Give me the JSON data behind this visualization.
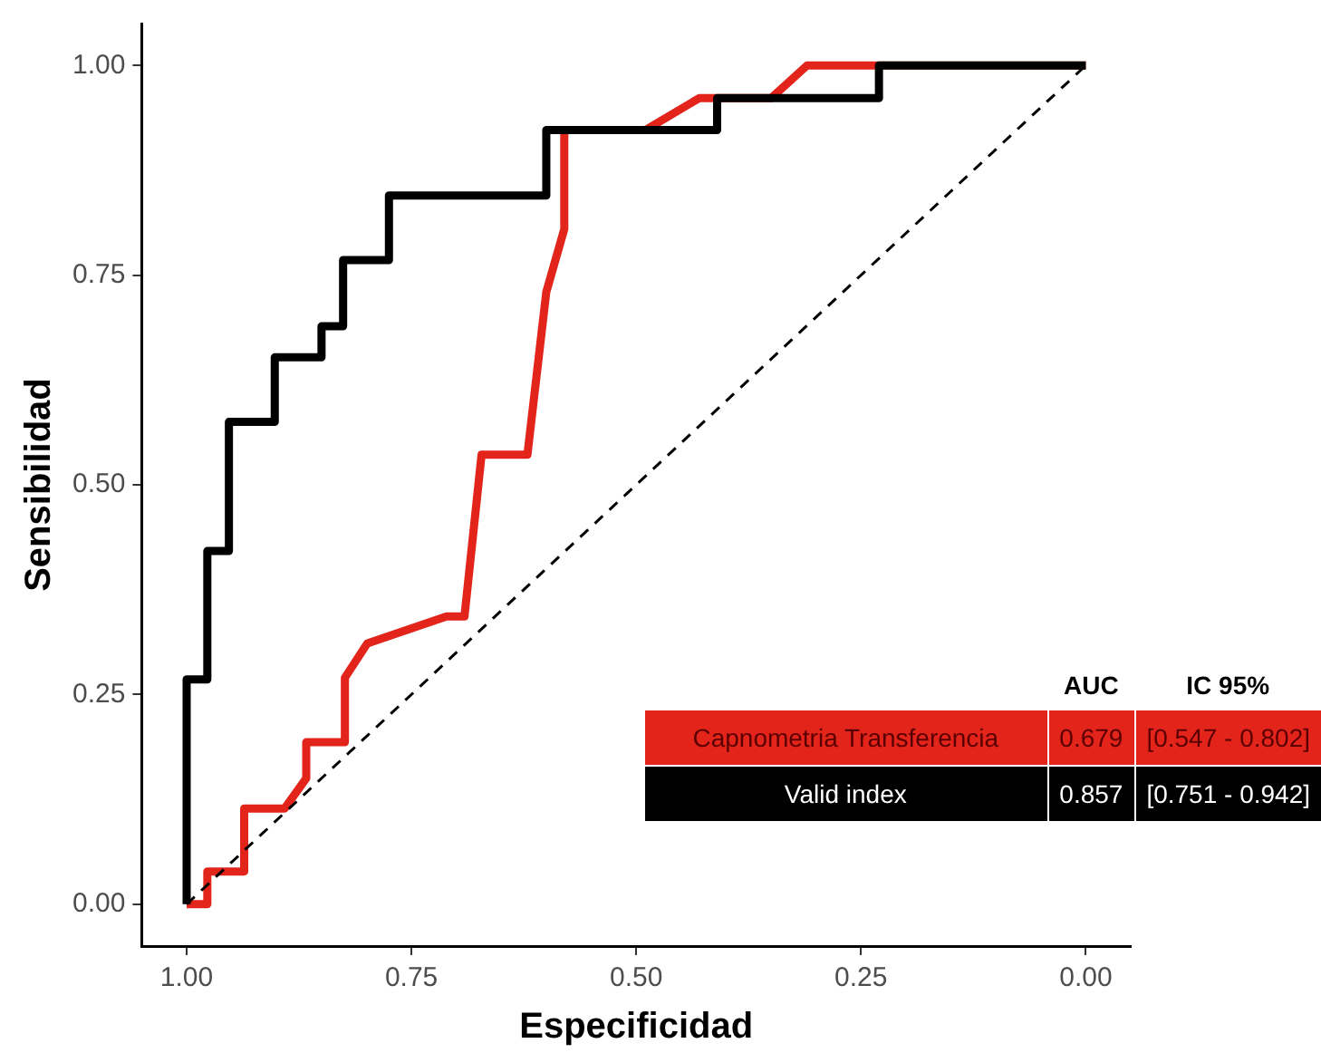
{
  "chart_data": {
    "type": "line",
    "xlabel": "Especificidad",
    "ylabel": "Sensibilidad",
    "xlim": [
      1.05,
      -0.05
    ],
    "xticks": [
      {
        "value": 1,
        "label": "1.00"
      },
      {
        "value": 0.75,
        "label": "0.75"
      },
      {
        "value": 0.5,
        "label": "0.50"
      },
      {
        "value": 0.25,
        "label": "0.25"
      },
      {
        "value": 0,
        "label": "0.00"
      }
    ],
    "ylim": [
      -0.05,
      1.05
    ],
    "yticks": [
      {
        "value": 0,
        "label": "0.00"
      },
      {
        "value": 0.25,
        "label": "0.25"
      },
      {
        "value": 0.5,
        "label": "0.50"
      },
      {
        "value": 0.75,
        "label": "0.75"
      },
      {
        "value": 1,
        "label": "1.00"
      }
    ],
    "grid": false,
    "legend": "bottom right",
    "marker": "none",
    "series": [
      {
        "name": "Capnometria Transferencia",
        "color": "#e3241b",
        "x": [
          1,
          0.977,
          0.977,
          0.936,
          0.936,
          0.891,
          0.867,
          0.867,
          0.824,
          0.824,
          0.799,
          0.711,
          0.691,
          0.672,
          0.672,
          0.621,
          0.6,
          0.58,
          0.58,
          0.49,
          0.43,
          0.35,
          0.31,
          0
        ],
        "values": [
          0,
          0,
          0.039,
          0.039,
          0.114,
          0.114,
          0.15,
          0.193,
          0.193,
          0.27,
          0.311,
          0.343,
          0.343,
          0.536,
          0.536,
          0.536,
          0.73,
          0.805,
          0.923,
          0.923,
          0.961,
          0.961,
          1,
          1
        ]
      },
      {
        "name": "Valid index",
        "color": "#000000",
        "x": [
          1,
          1,
          0.977,
          0.977,
          0.953,
          0.953,
          0.902,
          0.902,
          0.85,
          0.85,
          0.826,
          0.826,
          0.775,
          0.775,
          0.6,
          0.6,
          0.41,
          0.41,
          0.23,
          0.23,
          0
        ],
        "values": [
          0,
          0.268,
          0.268,
          0.421,
          0.421,
          0.575,
          0.575,
          0.652,
          0.652,
          0.689,
          0.689,
          0.768,
          0.768,
          0.845,
          0.845,
          0.923,
          0.923,
          0.961,
          0.961,
          1,
          1
        ]
      },
      {
        "color": "#000000",
        "line_style": "dashed",
        "x": [
          1,
          0
        ],
        "values": [
          0,
          1
        ]
      }
    ],
    "annotations": [
      "AUC",
      "IC 95%",
      "0.679",
      "[0.547 - 0.802]",
      "0.857",
      "[0.751 - 0.942]"
    ]
  }
}
